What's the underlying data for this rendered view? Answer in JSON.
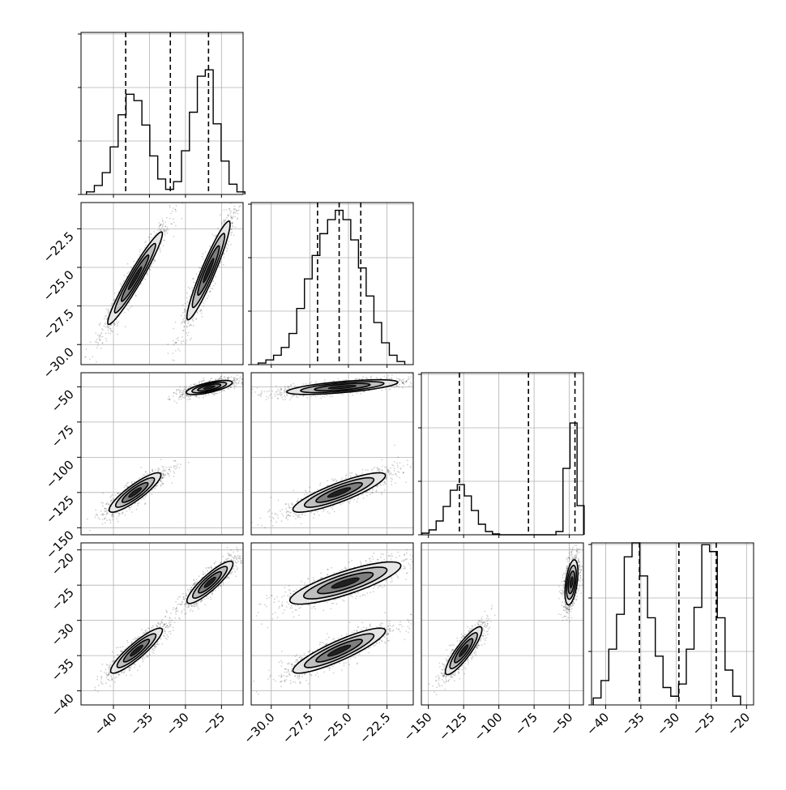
{
  "chart_data": {
    "type": "corner",
    "grid": true,
    "colors": {
      "line": "#000000",
      "grid": "#b0b0b0",
      "points": "#000000",
      "fill_levels": [
        "#e6e6e6",
        "#bfbfbf",
        "#7f7f7f",
        "#202020"
      ]
    },
    "parameters": [
      {
        "range": [
          -44.5,
          -22
        ],
        "ticks": [
          -40,
          -35,
          -30,
          -25
        ],
        "tick_labels": [
          "−40",
          "−35",
          "−30",
          "−25"
        ],
        "quantiles": [
          -38.3,
          -32.1,
          -26.8
        ],
        "hist_top": 1.3
      },
      {
        "range": [
          -31.3,
          -20.8
        ],
        "ticks": [
          -30,
          -27.5,
          -25,
          -22.5
        ],
        "tick_labels": [
          "−30.0",
          "−27.5",
          "−25.0",
          "−22.5"
        ],
        "quantiles": [
          -27.0,
          -25.6,
          -24.2
        ],
        "hist_top": 1.05
      },
      {
        "range": [
          -155,
          -40
        ],
        "ticks": [
          -150,
          -125,
          -100,
          -75,
          -50
        ],
        "tick_labels": [
          "−150",
          "−125",
          "−100",
          "−75",
          "−50"
        ],
        "quantiles": [
          -128.0,
          -79.0,
          -46.0
        ],
        "hist_top": 1.45
      },
      {
        "range": [
          -42,
          -19
        ],
        "ticks": [
          -40,
          -35,
          -30,
          -25,
          -20
        ],
        "tick_labels": [
          "−40",
          "−35",
          "−30",
          "−25",
          "−20"
        ],
        "quantiles": [
          -35.2,
          -29.6,
          -24.3
        ],
        "hist_top": 1.0
      }
    ],
    "histograms": [
      {
        "param": 0,
        "bins": [
          -43.2,
          -42.1,
          -41.0,
          -39.9,
          -38.8,
          -37.7,
          -36.6,
          -35.5,
          -34.4,
          -33.3,
          -32.2,
          -31.1,
          -30.0,
          -28.9,
          -27.8,
          -26.7,
          -25.6,
          -24.5,
          -23.4,
          -22.3
        ],
        "counts": [
          0.02,
          0.07,
          0.17,
          0.37,
          0.62,
          0.78,
          0.73,
          0.54,
          0.3,
          0.12,
          0.04,
          0.1,
          0.34,
          0.64,
          0.92,
          0.97,
          0.55,
          0.26,
          0.08,
          0.02
        ]
      },
      {
        "param": 1,
        "bins": [
          -30.6,
          -30.1,
          -29.6,
          -29.1,
          -28.6,
          -28.1,
          -27.6,
          -27.1,
          -26.6,
          -26.1,
          -25.6,
          -25.1,
          -24.6,
          -24.1,
          -23.6,
          -23.1,
          -22.6,
          -22.1,
          -21.6
        ],
        "counts": [
          0.01,
          0.03,
          0.06,
          0.11,
          0.2,
          0.36,
          0.55,
          0.7,
          0.84,
          0.93,
          0.99,
          0.93,
          0.8,
          0.62,
          0.44,
          0.27,
          0.14,
          0.06,
          0.02
        ]
      },
      {
        "param": 2,
        "bins": [
          -152,
          -147,
          -142,
          -137,
          -132,
          -127,
          -122,
          -117,
          -112,
          -107,
          -102,
          -97,
          -92,
          -87,
          -82,
          -77,
          -72,
          -67,
          -62,
          -57,
          -52,
          -47,
          -42
        ],
        "counts": [
          0.02,
          0.06,
          0.17,
          0.35,
          0.55,
          0.62,
          0.48,
          0.3,
          0.13,
          0.04,
          0.01,
          0,
          0,
          0,
          0,
          0,
          0,
          0,
          0,
          0.04,
          0.82,
          1.38,
          0.36
        ]
      },
      {
        "param": 3,
        "bins": [
          -41.2,
          -40.1,
          -39.0,
          -37.9,
          -36.8,
          -35.7,
          -34.6,
          -33.5,
          -32.4,
          -31.3,
          -30.2,
          -29.1,
          -28.0,
          -26.9,
          -25.8,
          -24.7,
          -23.6,
          -22.5,
          -21.4
        ],
        "counts": [
          0.04,
          0.14,
          0.32,
          0.52,
          0.85,
          0.93,
          0.74,
          0.5,
          0.28,
          0.1,
          0.05,
          0.12,
          0.32,
          0.56,
          0.92,
          0.88,
          0.5,
          0.2,
          0.05
        ]
      }
    ],
    "joint": [
      {
        "x": 0,
        "y": 1,
        "modes": [
          {
            "cx": -37.0,
            "cy": -25.7,
            "sx": 1.9,
            "sy": 1.5,
            "rho": 0.96
          },
          {
            "cx": -26.8,
            "cy": -25.2,
            "sx": 1.5,
            "sy": 1.6,
            "rho": 0.94
          }
        ]
      },
      {
        "x": 0,
        "y": 2,
        "modes": [
          {
            "cx": -37.0,
            "cy": -125.0,
            "sx": 1.8,
            "sy": 7.0,
            "rho": 0.88
          },
          {
            "cx": -26.7,
            "cy": -50.5,
            "sx": 1.6,
            "sy": 2.5,
            "rho": 0.7
          }
        ]
      },
      {
        "x": 0,
        "y": 3,
        "modes": [
          {
            "cx": -36.8,
            "cy": -34.3,
            "sx": 1.8,
            "sy": 1.6,
            "rho": 0.9
          },
          {
            "cx": -26.6,
            "cy": -24.6,
            "sx": 1.6,
            "sy": 1.5,
            "rho": 0.88
          }
        ]
      },
      {
        "x": 1,
        "y": 2,
        "modes": [
          {
            "cx": -25.6,
            "cy": -125.0,
            "sx": 1.5,
            "sy": 7.0,
            "rho": 0.86
          },
          {
            "cx": -25.4,
            "cy": -50.2,
            "sx": 1.8,
            "sy": 2.6,
            "rho": 0.65
          }
        ]
      },
      {
        "x": 1,
        "y": 3,
        "modes": [
          {
            "cx": -25.6,
            "cy": -34.3,
            "sx": 1.5,
            "sy": 1.6,
            "rho": 0.88
          },
          {
            "cx": -25.2,
            "cy": -24.7,
            "sx": 1.8,
            "sy": 1.5,
            "rho": 0.82
          }
        ]
      },
      {
        "x": 2,
        "y": 3,
        "modes": [
          {
            "cx": -125.0,
            "cy": -34.3,
            "sx": 6.5,
            "sy": 1.7,
            "rho": 0.88
          },
          {
            "cx": -48.5,
            "cy": -24.6,
            "sx": 2.3,
            "sy": 1.6,
            "rho": 0.45
          }
        ]
      }
    ]
  }
}
